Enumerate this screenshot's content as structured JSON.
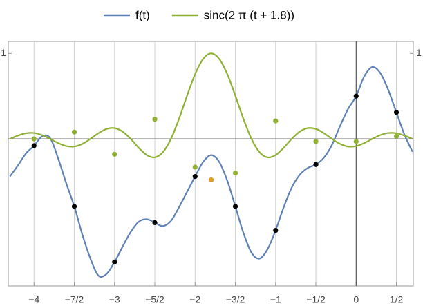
{
  "chart_data": {
    "type": "line",
    "xlim": [
      -4.32,
      0.71
    ],
    "ylim": [
      -1.72,
      1.14
    ],
    "xticks": [
      {
        "value": -4,
        "label": "−4"
      },
      {
        "value": -3.5,
        "label": "−7/2"
      },
      {
        "value": -3,
        "label": "−3"
      },
      {
        "value": -2.5,
        "label": "−5/2"
      },
      {
        "value": -2,
        "label": "−2"
      },
      {
        "value": -1.5,
        "label": "−3/2"
      },
      {
        "value": -1,
        "label": "−1"
      },
      {
        "value": -0.5,
        "label": "−1/2"
      },
      0,
      {
        "value": 0.5,
        "label": "1/2"
      }
    ],
    "yticks": [
      1
    ],
    "grid": true,
    "legend": "top",
    "series": [
      {
        "name": "f(t)",
        "type": "line",
        "color": "#5e81b5",
        "x": [
          -4.3,
          -4.2,
          -4.1,
          -4.0,
          -3.9,
          -3.8,
          -3.7,
          -3.6,
          -3.5,
          -3.4,
          -3.3,
          -3.2,
          -3.1,
          -3.0,
          -2.9,
          -2.8,
          -2.7,
          -2.6,
          -2.5,
          -2.4,
          -2.3,
          -2.2,
          -2.1,
          -2.0,
          -1.9,
          -1.8,
          -1.7,
          -1.6,
          -1.5,
          -1.4,
          -1.3,
          -1.2,
          -1.1,
          -1.0,
          -0.9,
          -0.8,
          -0.7,
          -0.6,
          -0.5,
          -0.4,
          -0.3,
          -0.2,
          -0.1,
          0,
          0.1,
          0.2,
          0.3,
          0.4,
          0.5,
          0.6,
          0.7
        ],
        "values": [
          -0.44,
          -0.31,
          -0.17,
          -0.08,
          0.03,
          0.01,
          -0.23,
          -0.52,
          -0.79,
          -1.12,
          -1.4,
          -1.6,
          -1.58,
          -1.44,
          -1.26,
          -1.09,
          -0.97,
          -0.94,
          -0.98,
          -1.02,
          -0.96,
          -0.8,
          -0.62,
          -0.44,
          -0.27,
          -0.19,
          -0.27,
          -0.49,
          -0.79,
          -1.1,
          -1.33,
          -1.4,
          -1.29,
          -1.07,
          -0.8,
          -0.57,
          -0.42,
          -0.34,
          -0.3,
          -0.22,
          -0.07,
          0.15,
          0.35,
          0.5,
          0.73,
          0.84,
          0.77,
          0.57,
          0.31,
          0.05,
          -0.15
        ]
      },
      {
        "name": "sinc(2 π (t + 1.8))",
        "type": "line",
        "color": "#8fb032",
        "x": [
          -4.3,
          -4.2,
          -4.1,
          -4.0,
          -3.9,
          -3.8,
          -3.7,
          -3.6,
          -3.5,
          -3.4,
          -3.3,
          -3.2,
          -3.1,
          -3.0,
          -2.9,
          -2.8,
          -2.7,
          -2.6,
          -2.5,
          -2.4,
          -2.3,
          -2.2,
          -2.1,
          -2.0,
          -1.9,
          -1.8,
          -1.7,
          -1.6,
          -1.5,
          -1.4,
          -1.3,
          -1.2,
          -1.1,
          -1.0,
          -0.9,
          -0.8,
          -0.7,
          -0.6,
          -0.5,
          -0.4,
          -0.3,
          -0.2,
          -0.1,
          0,
          0.1,
          0.2,
          0.3,
          0.4,
          0.5,
          0.6,
          0.7
        ],
        "values": [
          0,
          0.039,
          0.0658,
          0.0688,
          0.0445,
          0,
          -0.0492,
          -0.0841,
          -0.089,
          -0.0585,
          0,
          0.0668,
          0.1164,
          0.1261,
          0.085,
          0,
          -0.1039,
          -0.1892,
          -0.2162,
          -0.1559,
          0,
          0.2339,
          0.5046,
          0.7568,
          0.9355,
          1,
          0.9355,
          0.7568,
          0.5046,
          0.2339,
          0,
          -0.1559,
          -0.2162,
          -0.1892,
          -0.1039,
          0,
          0.085,
          0.1261,
          0.1164,
          0.0668,
          0,
          -0.0585,
          -0.089,
          -0.0841,
          -0.0492,
          0,
          0.0445,
          0.0688,
          0.0658,
          0.039,
          0
        ]
      },
      {
        "type": "scatter",
        "color": "#8fb032",
        "x": [
          -4,
          -3.5,
          -3,
          -2.5,
          -2,
          -1.5,
          -1,
          -0.5,
          0,
          0.5
        ],
        "values": [
          0,
          0.08,
          -0.18,
          0.23,
          -0.33,
          -0.4,
          0.21,
          -0.03,
          -0.03,
          0.03
        ]
      },
      {
        "type": "scatter",
        "color": "#000000",
        "x": [
          -4,
          -3.5,
          -3,
          -2.5,
          -2,
          -1.5,
          -1,
          -0.5,
          0,
          0.5
        ],
        "values": [
          -0.08,
          -0.79,
          -1.44,
          -0.98,
          -0.44,
          -0.79,
          -1.07,
          -0.3,
          0.5,
          0.31
        ]
      },
      {
        "type": "scatter",
        "color": "#e19c24",
        "x": [
          -1.8
        ],
        "values": [
          -0.48
        ]
      }
    ]
  }
}
